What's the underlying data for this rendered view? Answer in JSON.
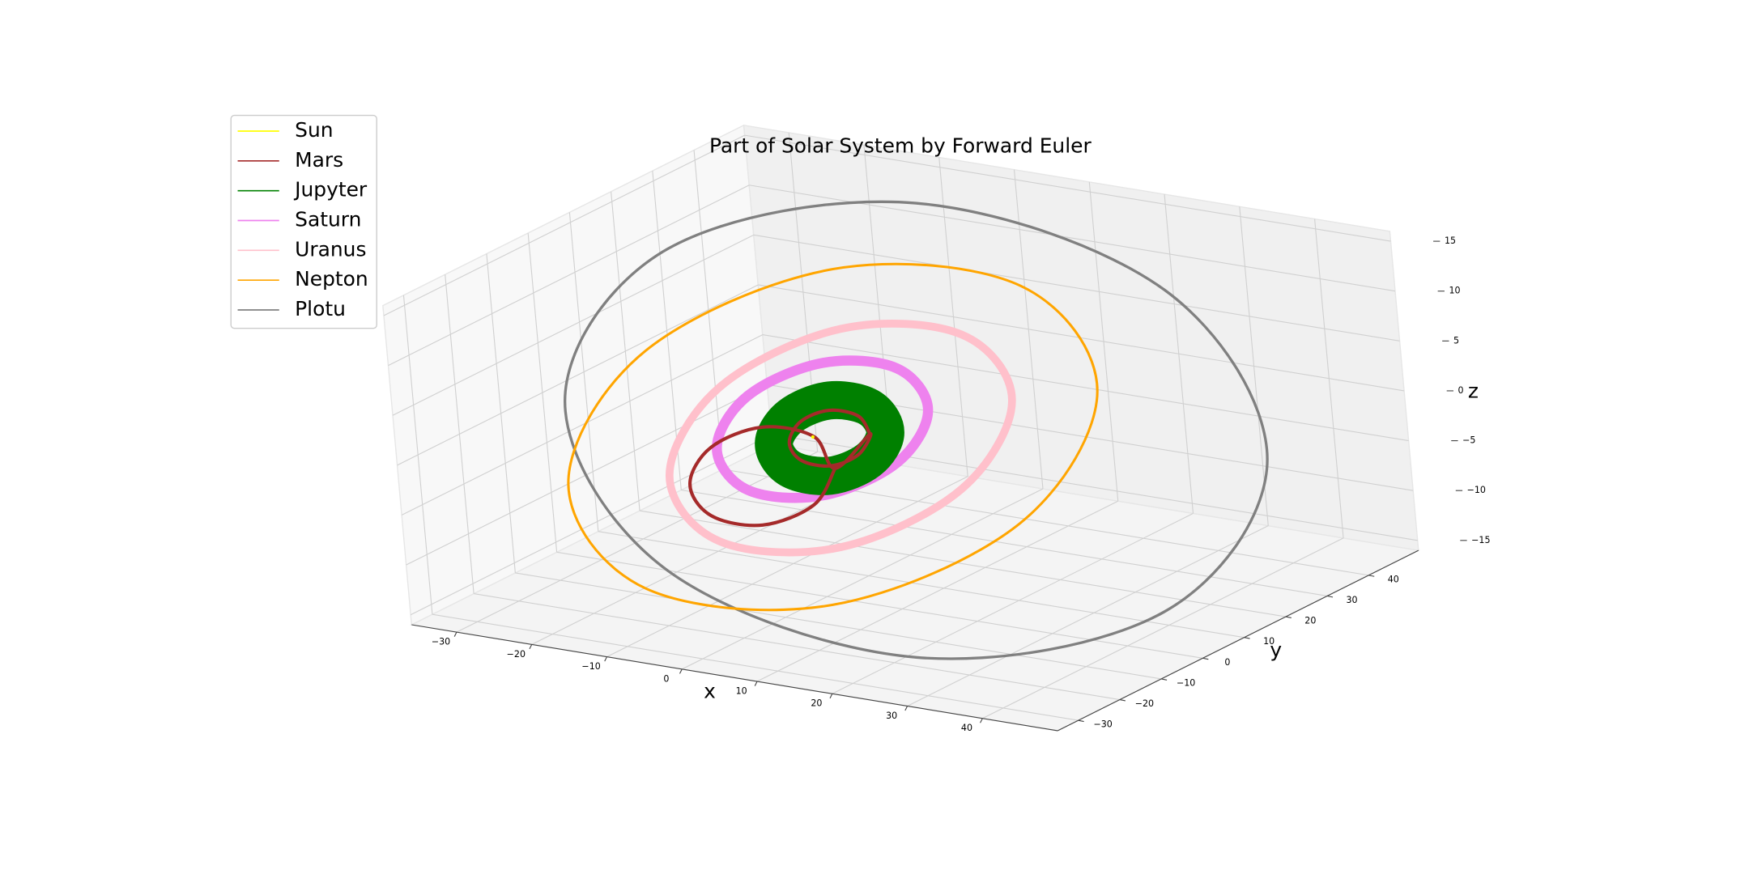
{
  "chart_data": {
    "type": "line3d",
    "title": "Part of Solar System by Forward Euler",
    "xlabel": "x",
    "ylabel": "y",
    "zlabel": "z",
    "xlim": [
      -36,
      50
    ],
    "ylim": [
      -35,
      52
    ],
    "zlim": [
      -16,
      16
    ],
    "xticks": [
      {
        "value": -30,
        "label": "−30"
      },
      {
        "value": -20,
        "label": "−20"
      },
      {
        "value": -10,
        "label": "−10"
      },
      0,
      10,
      20,
      30,
      40
    ],
    "yticks": [
      {
        "value": -30,
        "label": "−30"
      },
      {
        "value": -20,
        "label": "−20"
      },
      {
        "value": -10,
        "label": "−10"
      },
      0,
      10,
      20,
      30,
      40
    ],
    "zticks": [
      {
        "value": -15,
        "label": "−15"
      },
      {
        "value": -10,
        "label": "−10"
      },
      {
        "value": -5,
        "label": "−5"
      },
      0,
      5,
      10,
      15
    ],
    "grid": true,
    "legend": "upper left",
    "series": [
      {
        "name": "Sun",
        "color": "#ffff00",
        "x": [
          0
        ],
        "y": [
          0
        ],
        "z": [
          0
        ]
      },
      {
        "name": "Mars",
        "color": "#a52a2a",
        "x": [
          7.4,
          4.1,
          -0.6,
          -3.7,
          -3.6,
          -0.3,
          4.4,
          7.5,
          7.4,
          12.7,
          6.7,
          -1.6,
          -7.3,
          -7.1,
          -1.1,
          7.2,
          12.9,
          12.7
        ],
        "y": [
          0.6,
          3.9,
          5.3,
          3.9,
          0.6,
          -2.7,
          -4.1,
          -2.7,
          0.6,
          -17.2,
          -11.2,
          -8.7,
          -11.2,
          -17.2,
          -23.2,
          -25.7,
          -23.2,
          -17.2
        ],
        "z": [
          1.1,
          1.8,
          1.5,
          0.3,
          -1.1,
          -1.8,
          -1.5,
          -0.3,
          1.1,
          2.0,
          3.2,
          2.6,
          0.4,
          -2.0,
          -3.2,
          -2.6,
          -0.4,
          2.0
        ]
      },
      {
        "name": "Jupyter",
        "color": "#008000",
        "x": [
          9.5,
          4.9,
          -1.5,
          -5.8,
          -5.7,
          -1.1,
          5.3,
          9.6,
          9.5
        ],
        "y": [
          0.6,
          5.2,
          7.1,
          5.2,
          0.6,
          -4.0,
          -5.9,
          -4.0,
          0.6
        ],
        "z": [
          1.5,
          2.5,
          2.0,
          0.3,
          -1.5,
          -2.5,
          -2.0,
          -0.3,
          1.5
        ]
      },
      {
        "name": "Saturn",
        "color": "#ee82ee",
        "x": [
          13.9,
          5.1,
          -7.0,
          -15.4,
          -15.1,
          -6.3,
          5.8,
          14.2,
          13.9
        ],
        "y": [
          3.4,
          12.1,
          15.7,
          12.1,
          3.4,
          -5.3,
          -8.9,
          -5.3,
          3.4
        ],
        "z": [
          3.7,
          5.0,
          3.3,
          -0.3,
          -3.7,
          -5.0,
          -3.3,
          0.3,
          3.7
        ]
      },
      {
        "name": "Uranus",
        "color": "#ffc0cb",
        "x": [
          26.6,
          12.3,
          -7.4,
          -21.0,
          -20.6,
          -6.3,
          13.4,
          27.0,
          26.6
        ],
        "y": [
          1.3,
          15.4,
          21.3,
          15.4,
          1.3,
          -12.8,
          -18.7,
          -12.8,
          1.3
        ],
        "z": [
          6.7,
          8.6,
          5.5,
          -0.8,
          -6.7,
          -8.6,
          -5.5,
          0.8,
          6.7
        ]
      },
      {
        "name": "Nepton",
        "color": "#ffa500",
        "x": [
          38.3,
          16.3,
          -14.1,
          -35.1,
          -34.3,
          -12.3,
          18.1,
          39.1,
          38.3
        ],
        "y": [
          1.2,
          23.1,
          32.2,
          23.1,
          1.2,
          -20.7,
          -29.8,
          -20.7,
          1.2
        ],
        "z": [
          9.1,
          12.4,
          8.4,
          -0.5,
          -9.1,
          -12.4,
          -8.4,
          0.5,
          9.1
        ]
      },
      {
        "name": "Plotu",
        "color": "#808080",
        "x": [
          56.1,
          27.7,
          -11.7,
          -38.9,
          -38.1,
          -9.7,
          29.7,
          56.9,
          56.1
        ],
        "y": [
          8.6,
          36.9,
          48.6,
          36.9,
          8.6,
          -19.7,
          -31.4,
          -19.7,
          8.6
        ],
        "z": [
          2.9,
          10.5,
          11.9,
          6.4,
          -2.9,
          -10.5,
          -11.9,
          -6.4,
          2.9
        ]
      }
    ]
  }
}
